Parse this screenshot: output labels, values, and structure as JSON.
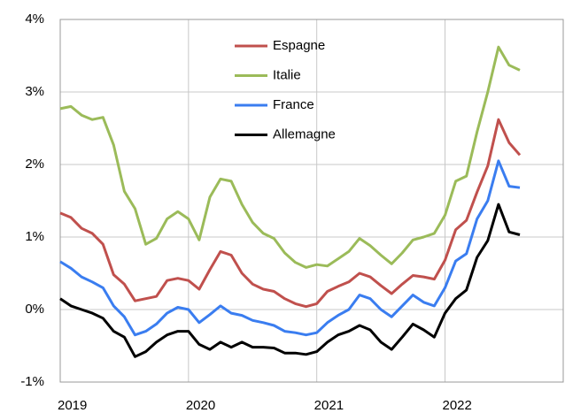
{
  "chart_data": {
    "type": "line",
    "categories": [
      "2019",
      null,
      null,
      null,
      null,
      null,
      null,
      null,
      null,
      null,
      null,
      null,
      "2020",
      null,
      null,
      null,
      null,
      null,
      null,
      null,
      null,
      null,
      null,
      null,
      "2021",
      null,
      null,
      null,
      null,
      null,
      null,
      null,
      null,
      null,
      null,
      null,
      "2022",
      null,
      null,
      null,
      null,
      null,
      null,
      null
    ],
    "series": [
      {
        "name": "Espagne",
        "color": "#c0504d",
        "values": [
          1.33,
          1.27,
          1.12,
          1.05,
          0.9,
          0.48,
          0.35,
          0.12,
          0.15,
          0.18,
          0.4,
          0.43,
          0.4,
          0.28,
          0.55,
          0.8,
          0.75,
          0.5,
          0.35,
          0.28,
          0.25,
          0.15,
          0.08,
          0.04,
          0.08,
          0.25,
          0.32,
          0.38,
          0.5,
          0.45,
          0.33,
          0.22,
          0.35,
          0.47,
          0.45,
          0.42,
          0.68,
          1.1,
          1.23,
          1.62,
          1.98,
          2.62,
          2.3,
          2.13
        ]
      },
      {
        "name": "Italie",
        "color": "#9bbb59",
        "values": [
          2.77,
          2.8,
          2.68,
          2.62,
          2.65,
          2.27,
          1.63,
          1.39,
          0.9,
          0.98,
          1.25,
          1.35,
          1.25,
          0.96,
          1.55,
          1.8,
          1.77,
          1.45,
          1.2,
          1.05,
          0.98,
          0.78,
          0.65,
          0.58,
          0.62,
          0.6,
          0.7,
          0.8,
          0.98,
          0.88,
          0.75,
          0.63,
          0.78,
          0.96,
          1.0,
          1.05,
          1.3,
          1.77,
          1.84,
          2.45,
          3.0,
          3.62,
          3.37,
          3.3
        ]
      },
      {
        "name": "France",
        "color": "#3a7df0",
        "values": [
          0.66,
          0.57,
          0.45,
          0.38,
          0.3,
          0.05,
          -0.1,
          -0.35,
          -0.3,
          -0.2,
          -0.05,
          0.03,
          0.0,
          -0.18,
          -0.07,
          0.05,
          -0.05,
          -0.08,
          -0.15,
          -0.18,
          -0.22,
          -0.3,
          -0.32,
          -0.35,
          -0.32,
          -0.18,
          -0.08,
          0.0,
          0.2,
          0.15,
          0.0,
          -0.1,
          0.05,
          0.2,
          0.1,
          0.05,
          0.3,
          0.67,
          0.77,
          1.25,
          1.5,
          2.05,
          1.7,
          1.68
        ]
      },
      {
        "name": "Allemagne",
        "color": "#000000",
        "values": [
          0.15,
          0.05,
          0.0,
          -0.05,
          -0.12,
          -0.3,
          -0.38,
          -0.65,
          -0.58,
          -0.45,
          -0.35,
          -0.3,
          -0.3,
          -0.48,
          -0.55,
          -0.45,
          -0.52,
          -0.45,
          -0.52,
          -0.52,
          -0.53,
          -0.6,
          -0.6,
          -0.62,
          -0.58,
          -0.45,
          -0.35,
          -0.3,
          -0.22,
          -0.28,
          -0.45,
          -0.55,
          -0.38,
          -0.2,
          -0.28,
          -0.38,
          -0.05,
          0.15,
          0.27,
          0.72,
          0.95,
          1.45,
          1.07,
          1.03
        ]
      }
    ],
    "ylim": [
      -1,
      4
    ],
    "yticks": [
      {
        "value": -1,
        "label": "-1%"
      },
      {
        "value": 0,
        "label": "0%"
      },
      {
        "value": 1,
        "label": "1%"
      },
      {
        "value": 2,
        "label": "2%"
      },
      {
        "value": 3,
        "label": "3%"
      },
      {
        "value": 4,
        "label": "4%"
      }
    ],
    "grid": true,
    "legend": "top"
  }
}
